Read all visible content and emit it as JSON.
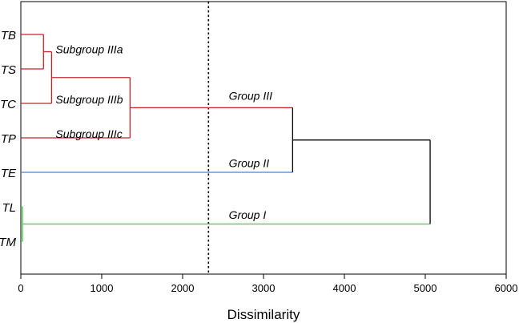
{
  "chart_data": {
    "type": "dendrogram",
    "orientation": "horizontal",
    "xlabel": "Dissimilarity",
    "xlim": [
      0,
      6000
    ],
    "x_ticks": [
      0,
      1000,
      2000,
      3000,
      4000,
      5000,
      6000
    ],
    "cut_line": 2320,
    "leaves": [
      "TB",
      "TS",
      "TC",
      "TP",
      "TE",
      "TL",
      "TM"
    ],
    "colors": {
      "group_iii": "#c0282d",
      "group_ii": "#3a86e0",
      "group_i": "#3ccc3c",
      "root": "#000000",
      "cut_line": "#000000"
    },
    "merges": [
      {
        "id": "m1",
        "height": 280,
        "left": "TB",
        "right": "TS",
        "color": "#c0282d"
      },
      {
        "id": "m2",
        "height": 380,
        "left": "m1",
        "right": "TC",
        "color": "#c0282d"
      },
      {
        "id": "m3",
        "height": 1350,
        "left": "m2",
        "right": "TP",
        "color": "#c0282d"
      },
      {
        "id": "m4",
        "height": 20,
        "left": "TL",
        "right": "TM",
        "color": "#3ccc3c"
      },
      {
        "id": "m5",
        "height": 3360,
        "left": "m3",
        "right": "TE",
        "color": "#000000",
        "left_color": "#c0282d",
        "right_color": "#3a86e0"
      },
      {
        "id": "m6",
        "height": 5060,
        "left": "m5",
        "right": "m4",
        "color": "#000000",
        "left_color": "#000000",
        "right_color": "#3ccc3c"
      }
    ],
    "annotations": [
      {
        "text": "Subgroup IIIa",
        "x": 430,
        "y_leaf": 0.55
      },
      {
        "text": "Subgroup IIIb",
        "x": 430,
        "y_leaf": 2.0
      },
      {
        "text": "Subgroup IIIc",
        "x": 430,
        "y_leaf": 3.0
      },
      {
        "text": "Group III",
        "x": 2570,
        "y_leaf": 1.9
      },
      {
        "text": "Group II",
        "x": 2570,
        "y_leaf": 3.85
      },
      {
        "text": "Group I",
        "x": 2570,
        "y_leaf": 5.35
      }
    ]
  }
}
